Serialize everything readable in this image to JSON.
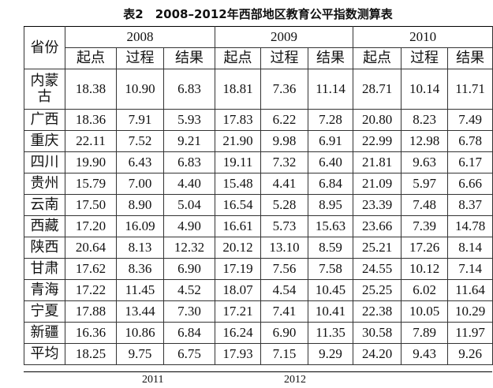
{
  "title": "表2　2008–2012年西部地区教育公平指数测算表",
  "table": {
    "province_header": "省份",
    "years": [
      {
        "year": "2008",
        "metrics": [
          "起点",
          "过程",
          "结果"
        ]
      },
      {
        "year": "2009",
        "metrics": [
          "起点",
          "过程",
          "结果"
        ]
      },
      {
        "year": "2010",
        "metrics": [
          "起点",
          "过程",
          "结果"
        ]
      }
    ],
    "rows": [
      [
        "内蒙古",
        "18.38",
        "10.90",
        "6.83",
        "18.81",
        "7.36",
        "11.14",
        "28.71",
        "10.14",
        "11.71"
      ],
      [
        "广西",
        "18.36",
        "7.91",
        "5.93",
        "17.83",
        "6.22",
        "7.28",
        "20.80",
        "8.23",
        "7.49"
      ],
      [
        "重庆",
        "22.11",
        "7.52",
        "9.21",
        "21.90",
        "9.98",
        "6.91",
        "22.99",
        "12.98",
        "6.78"
      ],
      [
        "四川",
        "19.90",
        "6.43",
        "6.83",
        "19.11",
        "7.32",
        "6.40",
        "21.81",
        "9.63",
        "6.17"
      ],
      [
        "贵州",
        "15.79",
        "7.00",
        "4.40",
        "15.48",
        "4.41",
        "6.84",
        "21.09",
        "5.97",
        "6.66"
      ],
      [
        "云南",
        "17.50",
        "8.90",
        "5.04",
        "16.54",
        "5.28",
        "8.95",
        "23.39",
        "7.48",
        "8.37"
      ],
      [
        "西藏",
        "17.20",
        "16.09",
        "4.90",
        "16.61",
        "5.73",
        "15.63",
        "23.66",
        "7.39",
        "14.78"
      ],
      [
        "陕西",
        "20.64",
        "8.13",
        "12.32",
        "20.12",
        "13.10",
        "8.59",
        "25.21",
        "17.26",
        "8.14"
      ],
      [
        "甘肃",
        "17.62",
        "8.36",
        "6.90",
        "17.19",
        "7.56",
        "7.58",
        "24.55",
        "10.12",
        "7.14"
      ],
      [
        "青海",
        "17.22",
        "11.45",
        "4.52",
        "18.07",
        "4.54",
        "10.45",
        "25.25",
        "6.02",
        "11.64"
      ],
      [
        "宁夏",
        "17.88",
        "13.44",
        "7.30",
        "17.21",
        "7.41",
        "10.41",
        "22.38",
        "10.05",
        "10.29"
      ],
      [
        "新疆",
        "16.36",
        "10.86",
        "6.84",
        "16.24",
        "6.90",
        "11.35",
        "30.58",
        "7.89",
        "11.97"
      ],
      [
        "平均",
        "18.25",
        "9.75",
        "6.75",
        "17.93",
        "7.15",
        "9.29",
        "24.20",
        "9.43",
        "9.26"
      ]
    ]
  },
  "next_table_years": [
    "2011",
    "2012"
  ]
}
